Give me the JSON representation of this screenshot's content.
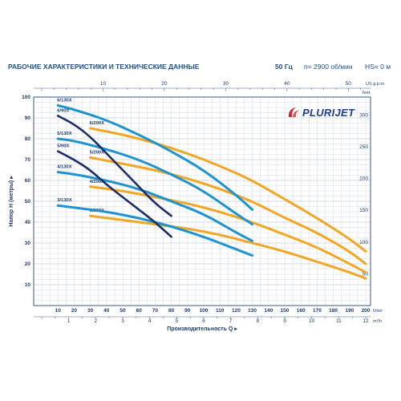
{
  "header": {
    "title": "РАБОЧИЕ ХАРАКТЕРИСТИКИ И ТЕХНИЧЕСКИЕ ДАННЫЕ",
    "freq": "50 Гц",
    "rpm": "n= 2900 об/мин",
    "hs": "HS= 0 м"
  },
  "logo": {
    "text": "PLURIJET",
    "color": "#1d3c8f",
    "accent": "#d8232a"
  },
  "colors": {
    "grid": "#c4cfdd",
    "axis": "#3a5a8a",
    "text": "#1f3c6e",
    "series_130": "#1f93cf",
    "series_200": "#f2a623",
    "series_90": "#1b2d6b"
  },
  "chart_data": {
    "type": "line",
    "title": "",
    "xlabel": "Производительность Q",
    "ylabel": "Напор H (метры)",
    "x_unit_label": "l/min",
    "xlim": [
      0,
      200
    ],
    "ylim": [
      0,
      100
    ],
    "x_ticks": [
      10,
      20,
      30,
      40,
      50,
      60,
      70,
      80,
      90,
      100,
      110,
      120,
      130,
      140,
      150,
      160,
      170,
      180,
      190,
      200
    ],
    "y_ticks": [
      10,
      20,
      30,
      40,
      50,
      60,
      70,
      80,
      90,
      100
    ],
    "secondary_axes": {
      "top": {
        "unit": "US g.p.m.",
        "ticks": [
          10,
          20,
          30,
          40,
          50
        ]
      },
      "bottom": {
        "unit": "m³/h",
        "ticks": [
          1,
          2,
          3,
          4,
          5,
          6,
          7,
          8,
          9,
          10,
          11,
          12
        ]
      },
      "right": {
        "unit": "feet",
        "ticks": [
          50,
          100,
          150,
          200,
          250,
          300
        ]
      }
    },
    "series": [
      {
        "name": "6/200X",
        "family": "200",
        "points": [
          [
            30,
            85
          ],
          [
            50,
            82
          ],
          [
            70,
            78
          ],
          [
            90,
            73
          ],
          [
            110,
            67
          ],
          [
            130,
            60
          ],
          [
            150,
            51
          ],
          [
            170,
            42
          ],
          [
            190,
            32
          ],
          [
            200,
            26
          ]
        ]
      },
      {
        "name": "5/200X",
        "family": "200",
        "points": [
          [
            30,
            71
          ],
          [
            50,
            68
          ],
          [
            70,
            65
          ],
          [
            90,
            61
          ],
          [
            110,
            56
          ],
          [
            130,
            50
          ],
          [
            150,
            42
          ],
          [
            170,
            35
          ],
          [
            190,
            26
          ],
          [
            200,
            20
          ]
        ]
      },
      {
        "name": "4/200X",
        "family": "200",
        "points": [
          [
            30,
            57
          ],
          [
            50,
            55
          ],
          [
            70,
            52
          ],
          [
            90,
            49
          ],
          [
            110,
            45
          ],
          [
            130,
            40
          ],
          [
            150,
            34
          ],
          [
            170,
            28
          ],
          [
            190,
            20
          ],
          [
            200,
            16
          ]
        ]
      },
      {
        "name": "3/200X",
        "family": "200",
        "points": [
          [
            30,
            43
          ],
          [
            50,
            41
          ],
          [
            70,
            39
          ],
          [
            90,
            37
          ],
          [
            110,
            34
          ],
          [
            130,
            30
          ],
          [
            150,
            26
          ],
          [
            170,
            21
          ],
          [
            190,
            16
          ],
          [
            200,
            13
          ]
        ]
      },
      {
        "name": "6/130X",
        "family": "130",
        "points": [
          [
            10,
            96
          ],
          [
            20,
            94
          ],
          [
            40,
            89
          ],
          [
            60,
            82
          ],
          [
            80,
            74
          ],
          [
            100,
            65
          ],
          [
            120,
            53
          ],
          [
            130,
            46
          ]
        ]
      },
      {
        "name": "5/130X",
        "family": "130",
        "points": [
          [
            10,
            80
          ],
          [
            20,
            79
          ],
          [
            40,
            75
          ],
          [
            60,
            70
          ],
          [
            80,
            63
          ],
          [
            100,
            55
          ],
          [
            120,
            44
          ],
          [
            130,
            39
          ]
        ]
      },
      {
        "name": "4/130X",
        "family": "130",
        "points": [
          [
            10,
            64
          ],
          [
            20,
            63
          ],
          [
            40,
            60
          ],
          [
            60,
            56
          ],
          [
            80,
            50
          ],
          [
            100,
            44
          ],
          [
            120,
            35
          ],
          [
            130,
            31
          ]
        ]
      },
      {
        "name": "3/130X",
        "family": "130",
        "points": [
          [
            10,
            48
          ],
          [
            20,
            47
          ],
          [
            40,
            45
          ],
          [
            60,
            42
          ],
          [
            80,
            38
          ],
          [
            100,
            33
          ],
          [
            120,
            27
          ],
          [
            130,
            24
          ]
        ]
      },
      {
        "name": "6/90X",
        "family": "90",
        "points": [
          [
            10,
            91
          ],
          [
            20,
            87
          ],
          [
            30,
            81
          ],
          [
            40,
            73
          ],
          [
            50,
            65
          ],
          [
            60,
            57
          ],
          [
            70,
            49
          ],
          [
            80,
            43
          ]
        ]
      },
      {
        "name": "5/90X",
        "family": "90",
        "points": [
          [
            10,
            74
          ],
          [
            20,
            70
          ],
          [
            30,
            65
          ],
          [
            40,
            58
          ],
          [
            50,
            52
          ],
          [
            60,
            46
          ],
          [
            70,
            40
          ],
          [
            80,
            33
          ]
        ]
      }
    ]
  }
}
